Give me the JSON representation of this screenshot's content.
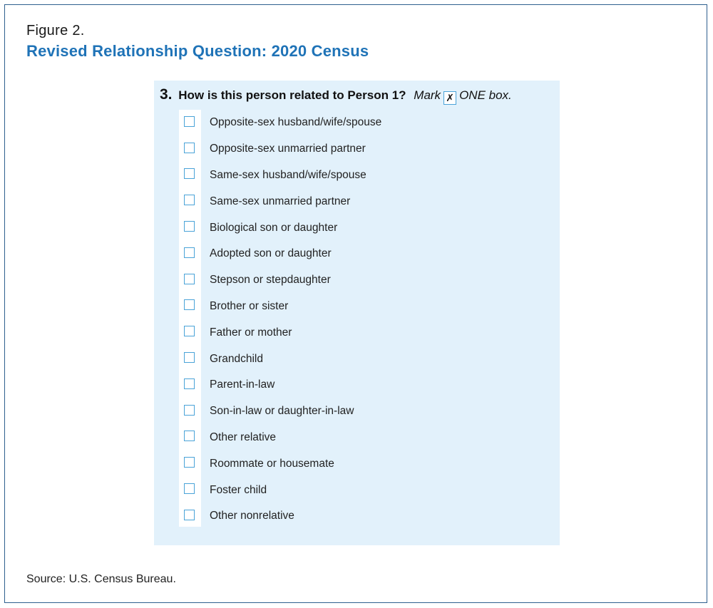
{
  "figure": {
    "label": "Figure 2.",
    "title": "Revised Relationship Question: 2020 Census"
  },
  "question": {
    "number": "3.",
    "text": "How is this person related to Person 1?",
    "mark_label": "Mark",
    "mark_symbol": "✗",
    "instruction": "ONE box."
  },
  "options": [
    {
      "label": "Opposite-sex husband/wife/spouse",
      "checked": false
    },
    {
      "label": "Opposite-sex unmarried partner",
      "checked": false
    },
    {
      "label": "Same-sex husband/wife/spouse",
      "checked": false
    },
    {
      "label": "Same-sex unmarried partner",
      "checked": false
    },
    {
      "label": "Biological son or daughter",
      "checked": false
    },
    {
      "label": "Adopted son or daughter",
      "checked": false
    },
    {
      "label": "Stepson or stepdaughter",
      "checked": false
    },
    {
      "label": "Brother or sister",
      "checked": false
    },
    {
      "label": "Father or mother",
      "checked": false
    },
    {
      "label": "Grandchild",
      "checked": false
    },
    {
      "label": "Parent-in-law",
      "checked": false
    },
    {
      "label": "Son-in-law or daughter-in-law",
      "checked": false
    },
    {
      "label": "Other relative",
      "checked": false
    },
    {
      "label": "Roommate or housemate",
      "checked": false
    },
    {
      "label": "Foster child",
      "checked": false
    },
    {
      "label": "Other nonrelative",
      "checked": false
    }
  ],
  "source": "Source: U.S. Census Bureau.",
  "colors": {
    "title_blue": "#1f73b7",
    "panel_bg": "#e2f1fb",
    "checkbox_border": "#4aa3d8",
    "frame_border": "#2e5f8f"
  }
}
